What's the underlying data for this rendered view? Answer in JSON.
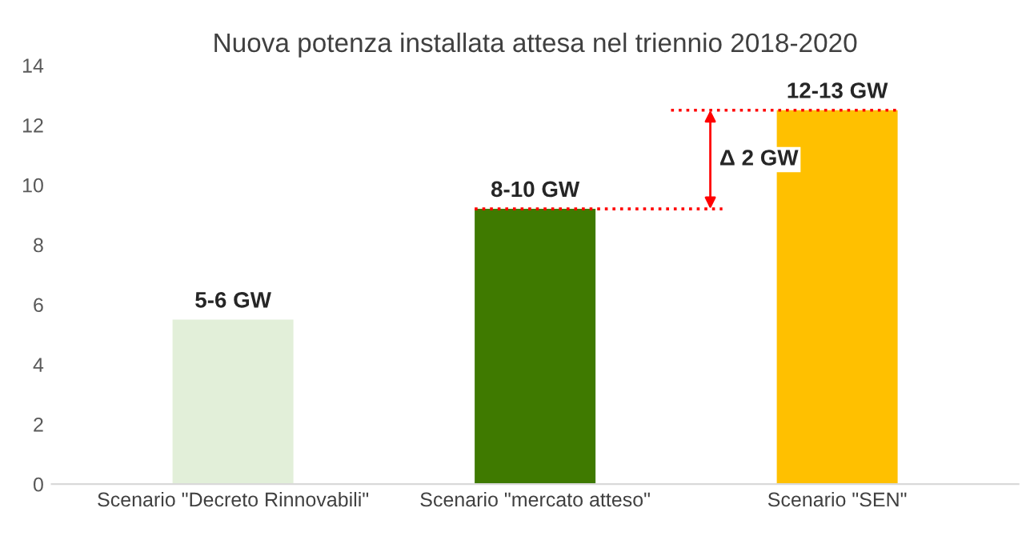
{
  "chart_data": {
    "type": "bar",
    "title": "Nuova potenza installata attesa nel triennio 2018-2020",
    "categories": [
      "Scenario \"Decreto Rinnovabili\"",
      "Scenario \"mercato atteso\"",
      "Scenario \"SEN\""
    ],
    "values": [
      5.5,
      9.2,
      12.5
    ],
    "colors": [
      "#e2efd9",
      "#3f7a00",
      "#ffc000"
    ],
    "value_labels": [
      "5-6 GW",
      "8-10 GW",
      "12-13 GW"
    ],
    "ylim": [
      0,
      14
    ],
    "yticks": [
      0,
      2,
      4,
      6,
      8,
      10,
      12,
      14
    ],
    "grid": false,
    "ref_lines": [
      {
        "axis": "y",
        "value": 9.2,
        "color": "#ff0000",
        "line_style": "dotted"
      },
      {
        "axis": "y",
        "value": 12.5,
        "color": "#ff0000",
        "line_style": "dotted"
      }
    ],
    "annotations": [
      "Δ 2 GW"
    ]
  }
}
